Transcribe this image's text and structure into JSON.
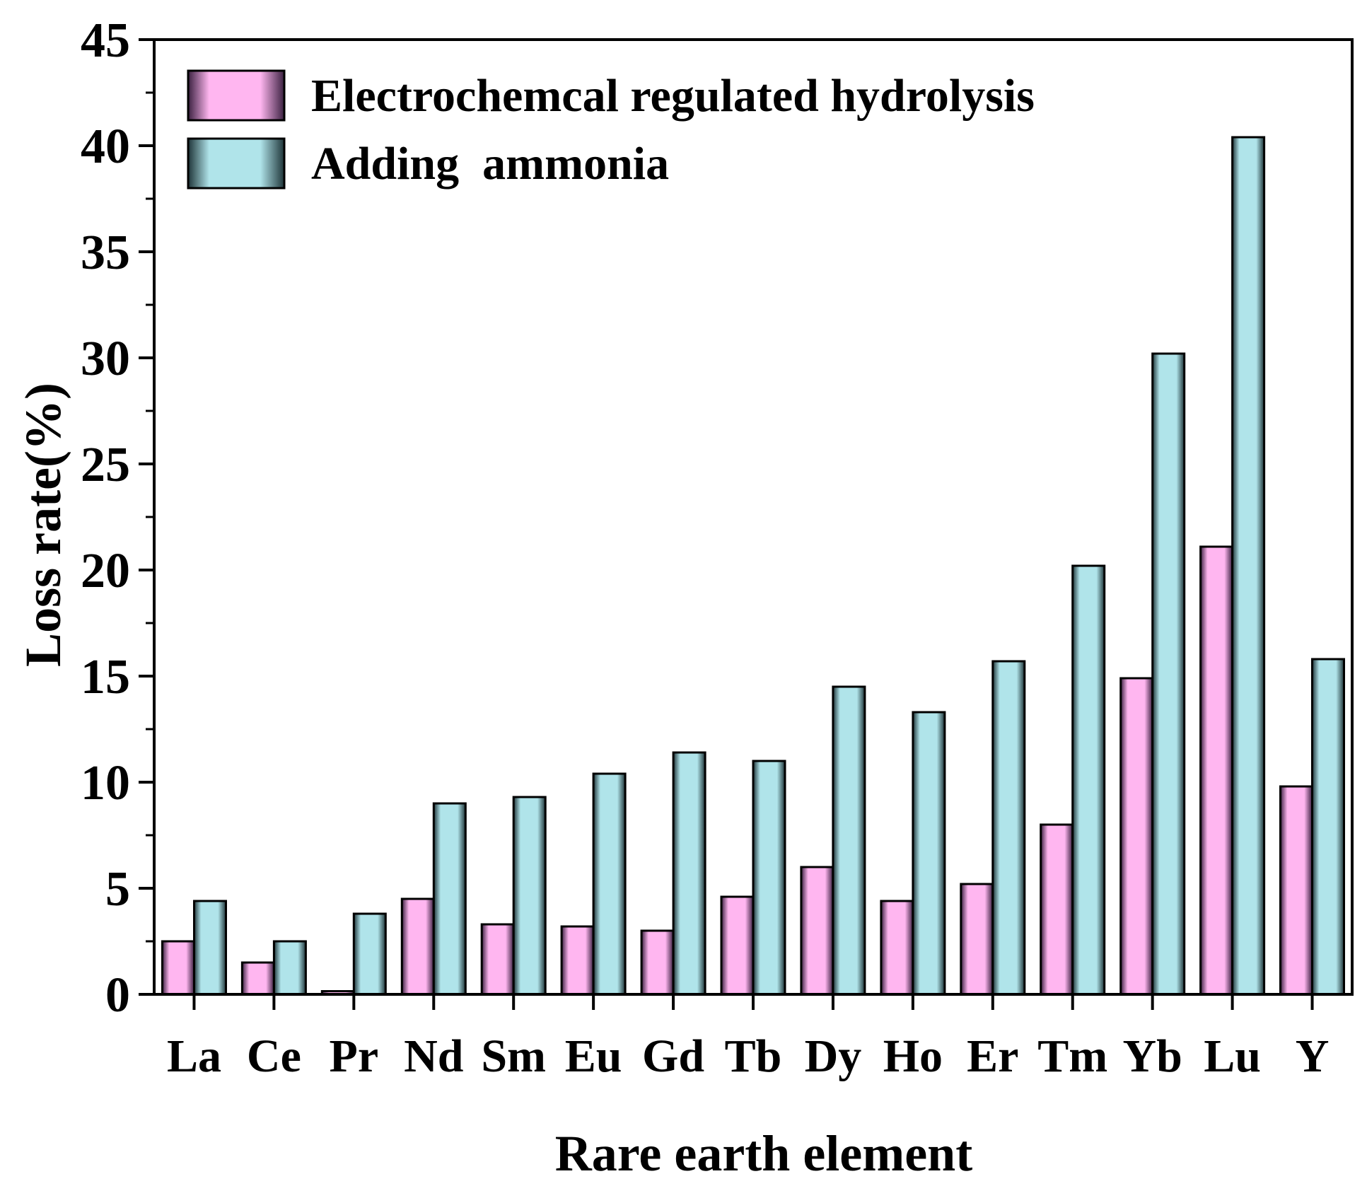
{
  "chart_data": {
    "type": "bar",
    "title": "",
    "xlabel": "Rare earth element",
    "ylabel": "Loss rate(%)",
    "ylim": [
      0,
      45
    ],
    "yticks": [
      0,
      5,
      10,
      15,
      20,
      25,
      30,
      35,
      40,
      45
    ],
    "grid": false,
    "legend_position": "top-left",
    "categories": [
      "La",
      "Ce",
      "Pr",
      "Nd",
      "Sm",
      "Eu",
      "Gd",
      "Tb",
      "Dy",
      "Ho",
      "Er",
      "Tm",
      "Yb",
      "Lu",
      "Y"
    ],
    "series": [
      {
        "name": "Electrochemcal regulated hydrolysis",
        "color": "#ffb6f0",
        "edge_color": "#3a2040",
        "values": [
          2.5,
          1.5,
          0.15,
          4.5,
          3.3,
          3.2,
          3.0,
          4.6,
          6.0,
          4.4,
          5.2,
          8.0,
          14.9,
          21.1,
          9.8
        ]
      },
      {
        "name": "Adding  ammonia",
        "color": "#b0e4ea",
        "edge_color": "#1e3438",
        "values": [
          4.4,
          2.5,
          3.8,
          9.0,
          9.3,
          10.4,
          11.4,
          11.0,
          14.5,
          13.3,
          15.7,
          20.2,
          30.2,
          40.4,
          15.8
        ]
      }
    ]
  }
}
